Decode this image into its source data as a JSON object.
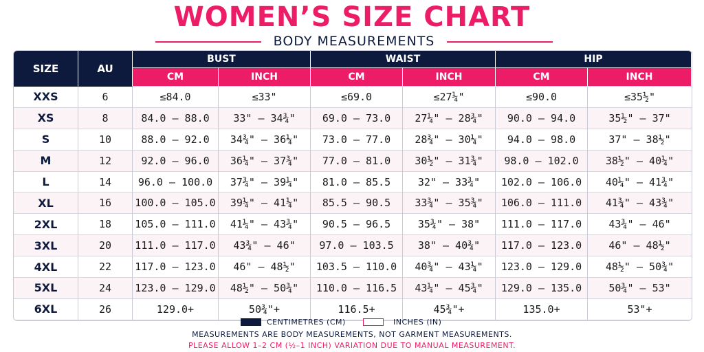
{
  "title": "WOMEN’S SIZE CHART",
  "subtitle": "BODY MEASUREMENTS",
  "colors": {
    "accent_pink": "#ec1c66",
    "navy": "#0e1a3d",
    "alt_row": "#fcf3f6"
  },
  "headers": {
    "size": "SIZE",
    "au": "AU",
    "groups": [
      "BUST",
      "WAIST",
      "HIP"
    ],
    "units": [
      "CM",
      "INCH",
      "CM",
      "INCH",
      "CM",
      "INCH"
    ]
  },
  "rows": [
    [
      "XXS",
      "6",
      "≤84.0",
      "≤33\"",
      "≤69.0",
      "≤27¼\"",
      "≤90.0",
      "≤35½\""
    ],
    [
      "XS",
      "8",
      "84.0 – 88.0",
      "33\" – 34¾\"",
      "69.0 – 73.0",
      "27¼\" – 28¾\"",
      "90.0 – 94.0",
      "35½\" – 37\""
    ],
    [
      "S",
      "10",
      "88.0 – 92.0",
      "34¾\" – 36¼\"",
      "73.0 – 77.0",
      "28¾\" – 30¼\"",
      "94.0 – 98.0",
      "37\" – 38½\""
    ],
    [
      "M",
      "12",
      "92.0 – 96.0",
      "36¼\" – 37¾\"",
      "77.0 – 81.0",
      "30½\" – 31¾\"",
      "98.0 – 102.0",
      "38½\" – 40¼\""
    ],
    [
      "L",
      "14",
      "96.0 – 100.0",
      "37¾\" – 39¼\"",
      "81.0 – 85.5",
      "32\" – 33¾\"",
      "102.0 – 106.0",
      "40¼\" – 41¾\""
    ],
    [
      "XL",
      "16",
      "100.0 – 105.0",
      "39¼\" – 41¼\"",
      "85.5 – 90.5",
      "33¾\" – 35¾\"",
      "106.0 – 111.0",
      "41¾\" – 43¾\""
    ],
    [
      "2XL",
      "18",
      "105.0 – 111.0",
      "41¼\" – 43¾\"",
      "90.5 – 96.5",
      "35¾\" – 38\"",
      "111.0 – 117.0",
      "43¾\" – 46\""
    ],
    [
      "3XL",
      "20",
      "111.0 – 117.0",
      "43¾\" – 46\"",
      "97.0 – 103.5",
      "38\" – 40¾\"",
      "117.0 – 123.0",
      "46\" – 48½\""
    ],
    [
      "4XL",
      "22",
      "117.0 – 123.0",
      "46\" – 48½\"",
      "103.5 – 110.0",
      "40¾\" – 43¼\"",
      "123.0 – 129.0",
      "48½\" – 50¾\""
    ],
    [
      "5XL",
      "24",
      "123.0 – 129.0",
      "48½\" – 50¾\"",
      "110.0 – 116.5",
      "43¼\" – 45¾\"",
      "129.0 – 135.0",
      "50¾\" – 53\""
    ],
    [
      "6XL",
      "26",
      "129.0+",
      "50¾\"+",
      "116.5+",
      "45¾\"+",
      "135.0+",
      "53\"+"
    ]
  ],
  "legend": {
    "cm_label": "CENTIMETRES (CM)",
    "inch_label": "INCHES (IN)"
  },
  "notes": {
    "line1": "MEASUREMENTS ARE BODY MEASUREMENTS, NOT GARMENT MEASUREMENTS.",
    "line2": "PLEASE ALLOW 1–2 CM (½–1 INCH) VARIATION DUE TO MANUAL MEASUREMENT."
  }
}
